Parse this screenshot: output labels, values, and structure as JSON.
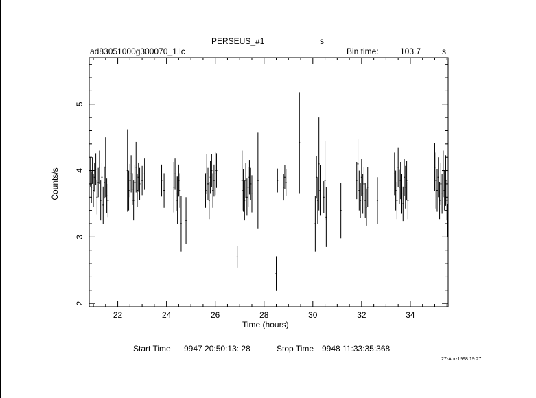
{
  "header": {
    "object": "PERSEUS_#1",
    "object_unit": "s",
    "file": "ad83051000g300070_1.lc",
    "bin_label": "Bin time:",
    "bin_value": "103.7",
    "bin_unit": "s"
  },
  "footer": {
    "start_label": "Start Time",
    "start_value": "9947 20:50:13: 28",
    "stop_label": "Stop Time",
    "stop_value": "9948 11:33:35:368",
    "date": "27-Apr-1998 19:27"
  },
  "chart_data": {
    "type": "scatter",
    "xlabel": "Time (hours)",
    "ylabel": "Counts/s",
    "xlim": [
      20.83,
      35.55
    ],
    "ylim": [
      1.95,
      5.7
    ],
    "xticks": [
      22,
      24,
      26,
      28,
      30,
      32,
      34
    ],
    "yticks": [
      2,
      3,
      4,
      5
    ],
    "grid": false,
    "series": [
      {
        "x": [
          20.88,
          20.92,
          20.96,
          21.0,
          21.05,
          21.1,
          21.15,
          21.2,
          21.25,
          21.3,
          21.35,
          21.4,
          21.45,
          21.5,
          21.55,
          21.6,
          22.4,
          22.45,
          22.5,
          22.55,
          22.6,
          22.65,
          22.7,
          22.75,
          22.8,
          22.85,
          22.9,
          23.0,
          23.1,
          23.8,
          23.9,
          24.3,
          24.35,
          24.4,
          24.45,
          24.5,
          24.55,
          24.6,
          24.8,
          25.6,
          25.65,
          25.7,
          25.75,
          25.8,
          25.85,
          25.9,
          25.95,
          26.0,
          26.05,
          26.9,
          27.1,
          27.15,
          27.2,
          27.25,
          27.3,
          27.35,
          27.4,
          27.45,
          27.5,
          27.75,
          28.5,
          28.55,
          28.8,
          28.85,
          28.9,
          29.45,
          30.1,
          30.15,
          30.2,
          30.25,
          30.3,
          30.45,
          30.5,
          30.55,
          31.15,
          31.8,
          31.85,
          31.9,
          31.95,
          32.0,
          32.05,
          32.1,
          32.15,
          32.2,
          32.25,
          32.65,
          33.35,
          33.4,
          33.45,
          33.5,
          33.55,
          33.6,
          33.65,
          33.7,
          33.75,
          33.8,
          33.85,
          33.9,
          35.0,
          35.05,
          35.1,
          35.15,
          35.2,
          35.25,
          35.3,
          35.35,
          35.4,
          35.45,
          35.5,
          35.53
        ],
        "y": [
          3.98,
          3.75,
          4.0,
          3.7,
          3.9,
          4.02,
          3.6,
          3.82,
          4.05,
          3.55,
          3.9,
          3.48,
          3.82,
          4.05,
          3.62,
          3.55,
          4.0,
          3.7,
          3.85,
          3.95,
          3.72,
          3.55,
          3.82,
          4.05,
          3.7,
          3.9,
          3.8,
          3.85,
          3.95,
          3.85,
          3.7,
          3.75,
          3.95,
          3.65,
          3.55,
          3.85,
          3.7,
          3.2,
          3.25,
          3.7,
          3.95,
          3.8,
          3.55,
          3.9,
          4.0,
          3.7,
          3.85,
          3.95,
          4.0,
          2.7,
          3.85,
          3.7,
          3.55,
          3.85,
          3.6,
          3.75,
          3.9,
          3.8,
          3.65,
          3.85,
          2.45,
          3.85,
          3.75,
          3.9,
          3.82,
          4.42,
          3.2,
          3.9,
          3.55,
          4.1,
          3.7,
          3.6,
          3.85,
          3.3,
          3.4,
          3.85,
          4.1,
          3.7,
          3.55,
          3.9,
          3.65,
          3.8,
          3.55,
          3.45,
          3.75,
          3.55,
          3.95,
          3.7,
          3.55,
          4.05,
          3.75,
          3.85,
          3.65,
          3.5,
          3.9,
          3.75,
          3.85,
          3.55,
          4.05,
          3.85,
          3.7,
          3.9,
          3.55,
          3.8,
          3.65,
          3.95,
          3.7,
          3.85,
          3.55,
          3.25
        ],
        "yerr": [
          0.22,
          0.24,
          0.2,
          0.25,
          0.22,
          0.24,
          0.26,
          0.22,
          0.25,
          0.3,
          0.22,
          0.28,
          0.24,
          0.45,
          0.26,
          0.25,
          0.62,
          0.3,
          0.25,
          0.28,
          0.24,
          0.3,
          0.26,
          0.38,
          0.25,
          0.22,
          0.24,
          0.22,
          0.24,
          0.24,
          0.26,
          0.38,
          0.24,
          0.26,
          0.36,
          0.24,
          0.26,
          0.42,
          0.35,
          0.26,
          0.3,
          0.24,
          0.28,
          0.24,
          0.25,
          0.26,
          0.24,
          0.32,
          0.26,
          0.16,
          0.45,
          0.32,
          0.3,
          0.26,
          0.28,
          0.3,
          0.26,
          0.24,
          0.28,
          0.72,
          0.26,
          0.18,
          0.2,
          0.18,
          0.2,
          0.76,
          0.42,
          0.32,
          0.35,
          0.7,
          0.38,
          0.24,
          0.6,
          0.45,
          0.42,
          0.28,
          0.38,
          0.3,
          0.26,
          0.28,
          0.3,
          0.25,
          0.26,
          0.28,
          0.3,
          0.35,
          0.32,
          0.3,
          0.28,
          0.3,
          0.26,
          0.28,
          0.3,
          0.26,
          0.28,
          0.32,
          0.3,
          0.28,
          0.36,
          0.42,
          0.32,
          0.3,
          0.28,
          0.32,
          0.3,
          0.35,
          0.3,
          0.38,
          0.3,
          0.25
        ]
      }
    ]
  }
}
